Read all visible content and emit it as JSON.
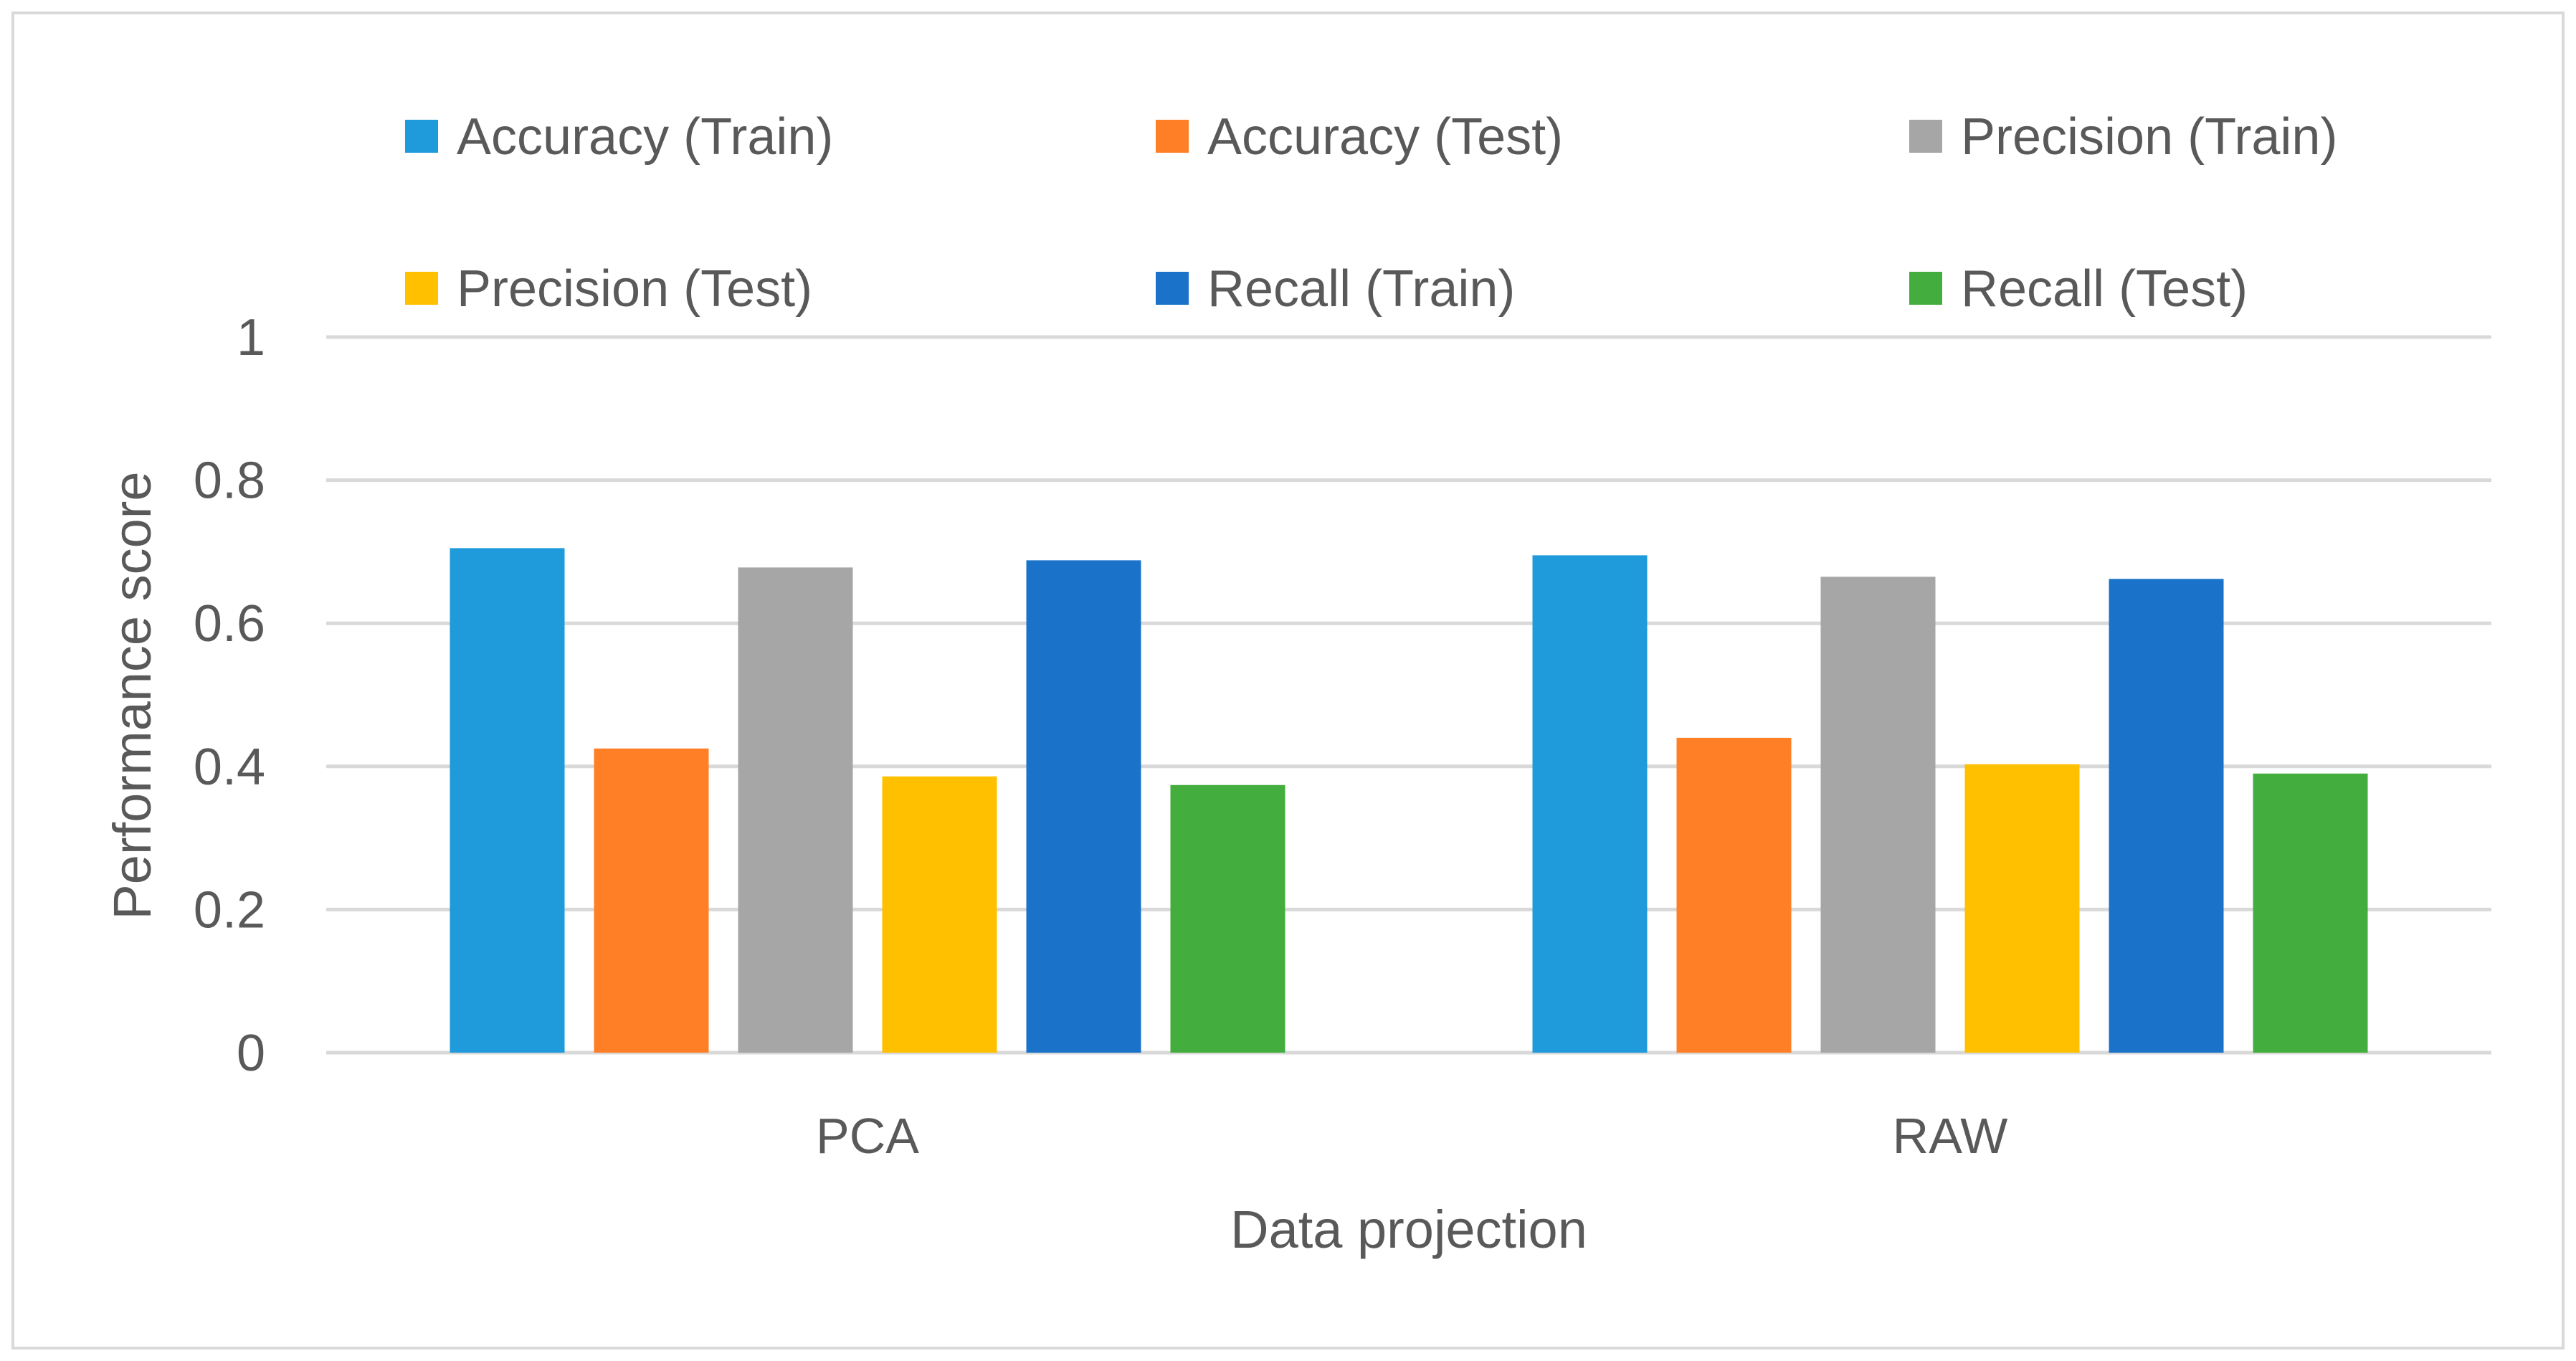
{
  "chart_data": {
    "type": "bar",
    "title": "",
    "xlabel": "Data projection",
    "ylabel": "Performance score",
    "categories": [
      "PCA",
      "RAW"
    ],
    "ylim": [
      0,
      1
    ],
    "yticks": [
      0,
      0.2,
      0.4,
      0.6,
      0.8,
      1
    ],
    "ytick_labels": [
      "0",
      "0.2",
      "0.4",
      "0.6",
      "0.8",
      "1"
    ],
    "grid": true,
    "legend_position": "top",
    "series": [
      {
        "name": "Accuracy (Train)",
        "color": "#1F9ADA",
        "values": [
          0.705,
          0.695
        ]
      },
      {
        "name": "Accuracy (Test)",
        "color": "#FF7F27",
        "values": [
          0.425,
          0.44
        ]
      },
      {
        "name": "Precision (Train)",
        "color": "#A6A6A6",
        "values": [
          0.678,
          0.665
        ]
      },
      {
        "name": "Precision (Test)",
        "color": "#FFC000",
        "values": [
          0.386,
          0.403
        ]
      },
      {
        "name": "Recall (Train)",
        "color": "#1A73C8",
        "values": [
          0.688,
          0.662
        ]
      },
      {
        "name": "Recall (Test)",
        "color": "#43AE3E",
        "values": [
          0.374,
          0.39
        ]
      }
    ]
  }
}
